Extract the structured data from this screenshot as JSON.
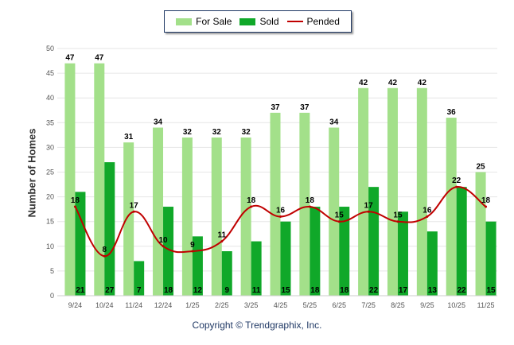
{
  "chart_data": {
    "type": "bar",
    "categories": [
      "9/24",
      "10/24",
      "11/24",
      "12/24",
      "1/25",
      "2/25",
      "3/25",
      "4/25",
      "5/25",
      "6/25",
      "7/25",
      "8/25",
      "9/25",
      "10/25",
      "11/25"
    ],
    "series": [
      {
        "name": "For Sale",
        "type": "bar",
        "color": "#a3e08a",
        "values": [
          47,
          47,
          31,
          34,
          32,
          32,
          32,
          37,
          37,
          34,
          42,
          42,
          42,
          36,
          25
        ]
      },
      {
        "name": "Sold",
        "type": "bar",
        "color": "#10a829",
        "values": [
          21,
          27,
          7,
          18,
          12,
          9,
          11,
          15,
          18,
          18,
          22,
          17,
          13,
          22,
          15
        ]
      },
      {
        "name": "Pended",
        "type": "line",
        "color": "#c00000",
        "values": [
          18,
          8,
          17,
          10,
          9,
          11,
          18,
          16,
          18,
          15,
          17,
          15,
          16,
          22,
          18
        ]
      }
    ],
    "ylabel": "Number of Homes",
    "ylim": [
      0,
      50
    ],
    "yticks": [
      0,
      5,
      10,
      15,
      20,
      25,
      30,
      35,
      40,
      45,
      50
    ],
    "grid": true,
    "legend": "top-center"
  },
  "footer": {
    "copyright": "Copyright © Trendgraphix, Inc."
  }
}
